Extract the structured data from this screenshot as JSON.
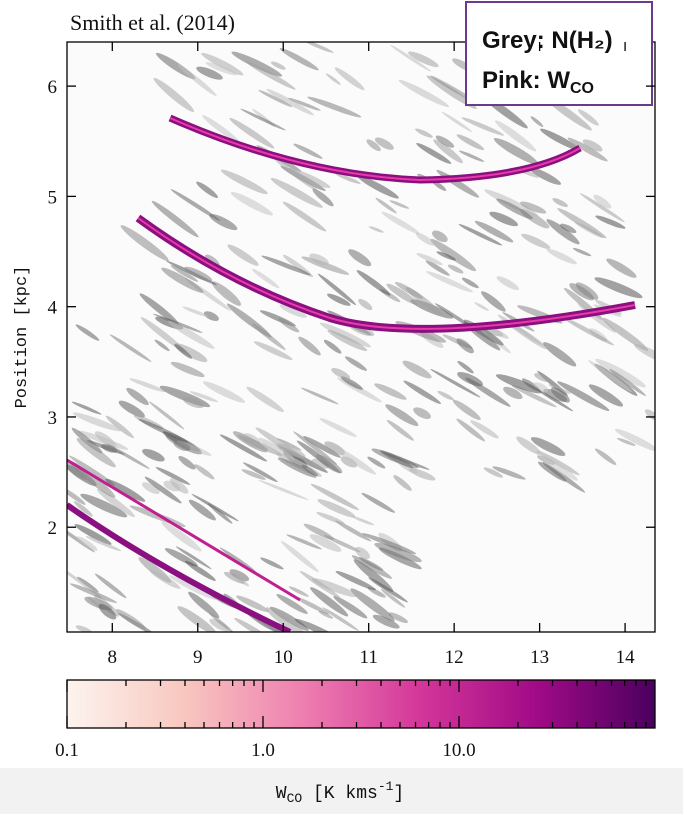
{
  "chart_data": {
    "type": "image-map",
    "title": "Smith et al. (2014)",
    "ylabel": "Position [kpc]",
    "legend_grey": "Grey: N(H₂)",
    "legend_pink": {
      "text": "Pink: W",
      "sub": "CO",
      "color": "#ff2e9e"
    },
    "xlim": [
      7.47,
      14.35
    ],
    "ylim": [
      1.05,
      6.4
    ],
    "xticks": [
      8,
      9,
      10,
      11,
      12,
      13,
      14
    ],
    "yticks": [
      2,
      3,
      4,
      5,
      6
    ],
    "colorbar": {
      "label": {
        "text": "W",
        "sub": "CO",
        "unit": " [K kms",
        "sup": "-1",
        "end": "]"
      },
      "log": true,
      "lim": [
        0.1,
        100
      ],
      "ticks": [
        0.1,
        {
          "value": 1,
          "label": "1.0"
        },
        {
          "value": 10,
          "label": "10.0"
        }
      ],
      "minor_ticks": [
        0.2,
        0.3,
        0.4,
        0.5,
        0.6,
        0.7,
        0.8,
        0.9,
        2,
        3,
        4,
        5,
        6,
        7,
        8,
        9,
        20,
        30,
        40,
        50,
        60,
        70,
        80,
        90
      ],
      "colormap": [
        "#fdf4ef",
        "#f8c7bf",
        "#ee7fb0",
        "#d4379a",
        "#a00a86",
        "#4a005f"
      ]
    }
  }
}
